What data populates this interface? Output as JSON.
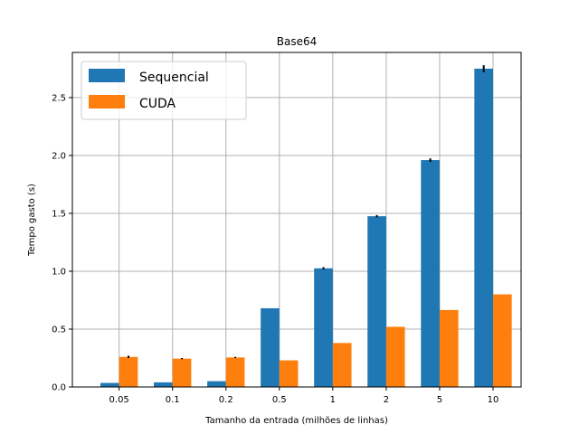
{
  "chart_data": {
    "type": "bar",
    "title": "Base64",
    "xlabel": "Tamanho da entrada (milhões de linhas)",
    "ylabel": "Tempo gasto (s)",
    "categories": [
      "0.05",
      "0.1",
      "0.2",
      "0.5",
      "1",
      "2",
      "5",
      "10"
    ],
    "series": [
      {
        "name": "Sequencial",
        "color": "#1f77b4",
        "values": [
          0.035,
          0.04,
          0.05,
          0.68,
          1.025,
          1.475,
          1.96,
          2.75
        ],
        "errors": [
          0.0,
          0.0,
          0.0,
          0.0,
          0.01,
          0.01,
          0.015,
          0.03
        ]
      },
      {
        "name": "CUDA",
        "color": "#ff7f0e",
        "values": [
          0.26,
          0.245,
          0.255,
          0.23,
          0.38,
          0.52,
          0.665,
          0.8
        ],
        "errors": [
          0.01,
          0.005,
          0.005,
          0.0,
          0.0,
          0.0,
          0.0,
          0.0
        ]
      }
    ],
    "ylim": [
      0,
      2.89
    ],
    "yticks": [
      "0.0",
      "0.5",
      "1.0",
      "1.5",
      "2.0",
      "2.5"
    ],
    "grid": true,
    "legend_position": "top-left"
  }
}
